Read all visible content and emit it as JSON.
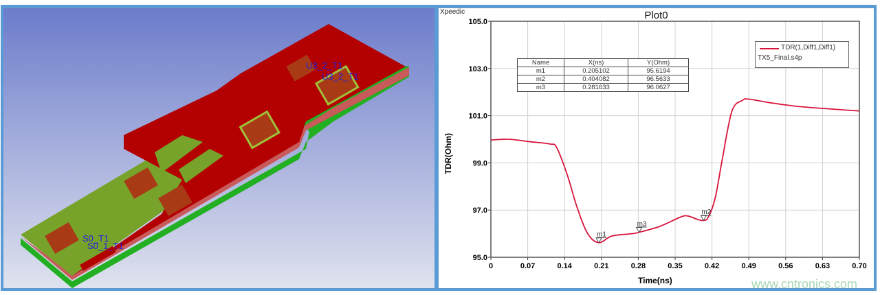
{
  "layout_view": {
    "labels": [
      "U3_2_T1",
      "U3_2_T1",
      "S0_T1",
      "S0_1_T1"
    ]
  },
  "plot": {
    "brand": "Xpeedic",
    "watermark": "www.cntronics.com",
    "legend": {
      "series": "TDR(1,Diff1,Diff1)",
      "file": "TX5_Final.s4p"
    },
    "marker_table": {
      "headers": [
        "Name",
        "X(ns)",
        "Y(Ohm)"
      ],
      "rows": [
        [
          "m1",
          "0.205102",
          "95.6194"
        ],
        [
          "m2",
          "0.404082",
          "96.5633"
        ],
        [
          "m3",
          "0.281633",
          "96.0627"
        ]
      ]
    }
  },
  "chart_data": {
    "type": "line",
    "title": "Plot0",
    "xlabel": "Time(ns)",
    "ylabel": "TDR(Ohm)",
    "xlim": [
      0,
      0.7
    ],
    "ylim": [
      95.0,
      105.0
    ],
    "xticks": [
      "0",
      "0.07",
      "0.14",
      "0.21",
      "0.28",
      "0.35",
      "0.42",
      "0.49",
      "0.56",
      "0.63",
      "0.70"
    ],
    "yticks": [
      "95.0",
      "97.0",
      "99.0",
      "101.0",
      "103.0",
      "105.0"
    ],
    "grid": true,
    "legend_position": "top-right",
    "series": [
      {
        "name": "TDR(1,Diff1,Diff1)",
        "color": "#d8143c",
        "x": [
          0,
          0.034,
          0.073,
          0.112,
          0.125,
          0.145,
          0.164,
          0.184,
          0.205,
          0.23,
          0.269,
          0.2816,
          0.32,
          0.36,
          0.374,
          0.393,
          0.404,
          0.413,
          0.426,
          0.44,
          0.458,
          0.478,
          0.49,
          0.53,
          0.58,
          0.635,
          0.7
        ],
        "y": [
          99.97,
          100.0,
          99.9,
          99.8,
          99.65,
          98.5,
          97.1,
          96.0,
          95.62,
          95.9,
          96.0,
          96.06,
          96.3,
          96.7,
          96.75,
          96.6,
          96.56,
          96.7,
          97.5,
          99.2,
          101.2,
          101.65,
          101.7,
          101.55,
          101.4,
          101.3,
          101.2
        ]
      }
    ],
    "markers": [
      {
        "name": "m1",
        "x": 0.205102,
        "y": 95.6194
      },
      {
        "name": "m2",
        "x": 0.404082,
        "y": 96.5633
      },
      {
        "name": "m3",
        "x": 0.281633,
        "y": 96.0627
      }
    ]
  }
}
